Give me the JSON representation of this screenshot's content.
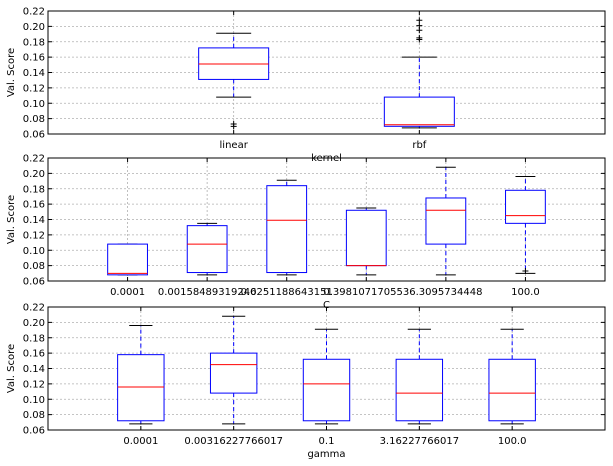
{
  "colors": {
    "box": "#0000ff",
    "median": "#ff0000",
    "whisker": "#0000ff",
    "cap": "#000000",
    "flier": "#000000",
    "grid": "#b0b0b0"
  },
  "chart_data": [
    {
      "type": "box",
      "xlabel": "kernel",
      "ylabel": "Val. Score",
      "ylim": [
        0.06,
        0.22
      ],
      "yticks": [
        "0.06",
        "0.08",
        "0.10",
        "0.12",
        "0.14",
        "0.16",
        "0.18",
        "0.20",
        "0.22"
      ],
      "grid": true,
      "categories": [
        "linear",
        "rbf"
      ],
      "boxes": [
        {
          "whislo": 0.108,
          "q1": 0.131,
          "med": 0.151,
          "q3": 0.172,
          "whishi": 0.191,
          "fliers": [
            0.073,
            0.07
          ]
        },
        {
          "whislo": 0.068,
          "q1": 0.07,
          "med": 0.072,
          "q3": 0.108,
          "whishi": 0.16,
          "fliers": [
            0.183,
            0.185,
            0.195,
            0.201,
            0.208
          ]
        }
      ]
    },
    {
      "type": "box",
      "xlabel": "C",
      "ylabel": "Val. Score",
      "ylim": [
        0.06,
        0.22
      ],
      "yticks": [
        "0.06",
        "0.08",
        "0.10",
        "0.12",
        "0.14",
        "0.16",
        "0.18",
        "0.20",
        "0.22"
      ],
      "grid": true,
      "categories": [
        "0.0001",
        "0.00158489319246",
        "0.0251188643151",
        "0.398107170553",
        "6.3095734448",
        "100.0"
      ],
      "boxes": [
        {
          "whislo": 0.068,
          "q1": 0.068,
          "med": 0.07,
          "q3": 0.108,
          "whishi": 0.108,
          "fliers": []
        },
        {
          "whislo": 0.068,
          "q1": 0.071,
          "med": 0.108,
          "q3": 0.132,
          "whishi": 0.135,
          "fliers": []
        },
        {
          "whislo": 0.068,
          "q1": 0.071,
          "med": 0.139,
          "q3": 0.184,
          "whishi": 0.191,
          "fliers": []
        },
        {
          "whislo": 0.068,
          "q1": 0.08,
          "med": 0.08,
          "q3": 0.152,
          "whishi": 0.155,
          "fliers": []
        },
        {
          "whislo": 0.068,
          "q1": 0.108,
          "med": 0.152,
          "q3": 0.168,
          "whishi": 0.208,
          "fliers": []
        },
        {
          "whislo": 0.07,
          "q1": 0.135,
          "med": 0.145,
          "q3": 0.178,
          "whishi": 0.196,
          "fliers": [
            0.073
          ]
        }
      ]
    },
    {
      "type": "box",
      "xlabel": "gamma",
      "ylabel": "Val. Score",
      "ylim": [
        0.06,
        0.22
      ],
      "yticks": [
        "0.06",
        "0.08",
        "0.10",
        "0.12",
        "0.14",
        "0.16",
        "0.18",
        "0.20",
        "0.22"
      ],
      "grid": true,
      "categories": [
        "0.0001",
        "0.00316227766017",
        "0.1",
        "3.16227766017",
        "100.0"
      ],
      "boxes": [
        {
          "whislo": 0.068,
          "q1": 0.072,
          "med": 0.116,
          "q3": 0.158,
          "whishi": 0.196,
          "fliers": []
        },
        {
          "whislo": 0.068,
          "q1": 0.108,
          "med": 0.145,
          "q3": 0.16,
          "whishi": 0.208,
          "fliers": []
        },
        {
          "whislo": 0.068,
          "q1": 0.072,
          "med": 0.12,
          "q3": 0.152,
          "whishi": 0.191,
          "fliers": []
        },
        {
          "whislo": 0.068,
          "q1": 0.072,
          "med": 0.108,
          "q3": 0.152,
          "whishi": 0.191,
          "fliers": []
        },
        {
          "whislo": 0.068,
          "q1": 0.072,
          "med": 0.108,
          "q3": 0.152,
          "whishi": 0.191,
          "fliers": []
        }
      ]
    }
  ]
}
